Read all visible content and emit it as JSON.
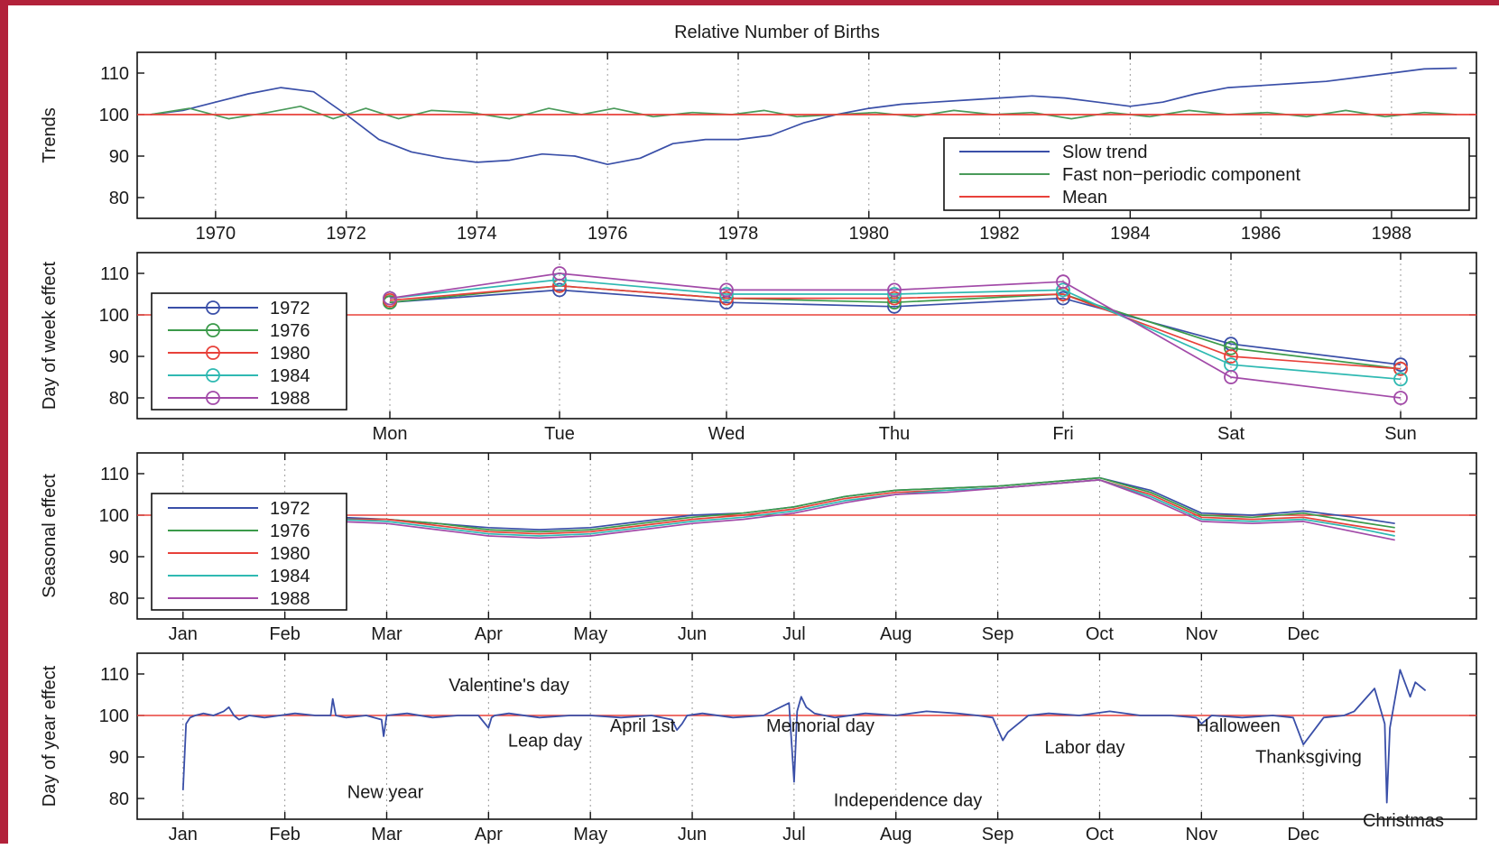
{
  "figure_title": "Relative Number of Births",
  "colors": {
    "mean": "#e8413a",
    "slow": "#3a4fa8",
    "fast": "#4a9a5a",
    "border": "#b2213a",
    "years": [
      "#3a4fa8",
      "#3b9a4a",
      "#e8413a",
      "#2fb9b2",
      "#a24aa8"
    ]
  },
  "chart_data": [
    {
      "type": "line",
      "panel": "trends",
      "title": "Relative Number of Births",
      "ylabel": "Trends",
      "xlabel": "",
      "xlim": [
        1968.8,
        1989.3
      ],
      "ylim": [
        75,
        115
      ],
      "yticks": [
        80,
        90,
        100,
        110
      ],
      "xticks": [
        1970,
        1972,
        1974,
        1976,
        1978,
        1980,
        1982,
        1984,
        1986,
        1988
      ],
      "xtick_labels": [
        "1970",
        "1972",
        "1974",
        "1976",
        "1978",
        "1980",
        "1982",
        "1984",
        "1986",
        "1988"
      ],
      "grid": "vertical dotted",
      "legend": {
        "placement": "bottom-right",
        "entries": [
          "Slow trend",
          "Fast non−periodic component",
          "Mean"
        ]
      },
      "series": [
        {
          "name": "Slow trend",
          "x": [
            1969,
            1969.5,
            1970,
            1970.5,
            1971,
            1971.5,
            1972,
            1972.5,
            1973,
            1973.5,
            1974,
            1974.5,
            1975,
            1975.5,
            1976,
            1976.5,
            1977,
            1977.5,
            1978,
            1978.5,
            1979,
            1979.5,
            1980,
            1980.5,
            1981,
            1981.5,
            1982,
            1982.5,
            1983,
            1983.5,
            1984,
            1984.5,
            1985,
            1985.5,
            1986,
            1986.5,
            1987,
            1987.5,
            1988,
            1988.5,
            1989
          ],
          "values": [
            100,
            101,
            103,
            105,
            106.5,
            105.5,
            100,
            94,
            91,
            89.5,
            88.5,
            89,
            90.5,
            90,
            88,
            89.5,
            93,
            94,
            94,
            95,
            98,
            100,
            101.5,
            102.5,
            103,
            103.5,
            104,
            104.5,
            104,
            103,
            102,
            103,
            105,
            106.5,
            107,
            107.5,
            108,
            109,
            110,
            111,
            111.2
          ]
        },
        {
          "name": "Fast non−periodic component",
          "x": [
            1969,
            1969.6,
            1970.2,
            1970.8,
            1971.3,
            1971.8,
            1972.3,
            1972.8,
            1973.3,
            1973.9,
            1974.5,
            1975.1,
            1975.6,
            1976.1,
            1976.7,
            1977.3,
            1977.9,
            1978.4,
            1978.9,
            1979.5,
            1980.1,
            1980.7,
            1981.3,
            1981.9,
            1982.5,
            1983.1,
            1983.7,
            1984.3,
            1984.9,
            1985.5,
            1986.1,
            1986.7,
            1987.3,
            1987.9,
            1988.5,
            1989
          ],
          "values": [
            100,
            101.5,
            99,
            100.5,
            102,
            99,
            101.5,
            99,
            101,
            100.5,
            99,
            101.5,
            100,
            101.5,
            99.5,
            100.5,
            100,
            101,
            99.5,
            100,
            100.5,
            99.5,
            101,
            100,
            100.5,
            99,
            100.5,
            99.5,
            101,
            100,
            100.5,
            99.5,
            101,
            99.5,
            100.5,
            100
          ]
        },
        {
          "name": "Mean",
          "x": [
            1968.8,
            1989.3
          ],
          "values": [
            100,
            100
          ]
        }
      ]
    },
    {
      "type": "line",
      "panel": "day-of-week",
      "ylabel": "Day of week effect",
      "xlabel": "",
      "categories": [
        "Mon",
        "Tue",
        "Wed",
        "Thu",
        "Fri",
        "Sat",
        "Sun"
      ],
      "ylim": [
        75,
        115
      ],
      "yticks": [
        80,
        90,
        100,
        110
      ],
      "grid": "vertical dotted",
      "legend": {
        "placement": "left",
        "entries": [
          "1972",
          "1976",
          "1980",
          "1984",
          "1988"
        ]
      },
      "series": [
        {
          "name": "1972",
          "values": [
            103,
            106,
            103,
            102,
            104,
            93,
            88
          ]
        },
        {
          "name": "1976",
          "values": [
            103,
            107,
            104,
            103,
            105,
            92,
            87
          ]
        },
        {
          "name": "1980",
          "values": [
            103.5,
            107,
            104,
            104,
            105,
            90,
            87
          ]
        },
        {
          "name": "1984",
          "values": [
            104,
            108.5,
            105,
            105,
            106,
            88,
            84.5
          ]
        },
        {
          "name": "1988",
          "values": [
            104,
            110,
            106,
            106,
            108,
            85,
            80
          ]
        }
      ]
    },
    {
      "type": "line",
      "panel": "seasonal",
      "ylabel": "Seasonal effect",
      "xlabel": "",
      "xlim": [
        -0.45,
        12.7
      ],
      "x_month_ticks": [
        "Jan",
        "Feb",
        "Mar",
        "Apr",
        "May",
        "Jun",
        "Jul",
        "Aug",
        "Sep",
        "Oct",
        "Nov",
        "Dec"
      ],
      "ylim": [
        75,
        115
      ],
      "yticks": [
        80,
        90,
        100,
        110
      ],
      "grid": "vertical dotted",
      "legend": {
        "placement": "left",
        "entries": [
          "1972",
          "1976",
          "1980",
          "1984",
          "1988"
        ]
      },
      "x": [
        0,
        0.5,
        1,
        1.5,
        2,
        2.5,
        3,
        3.5,
        4,
        4.5,
        5,
        5.5,
        6,
        6.5,
        7,
        7.5,
        8,
        8.5,
        9,
        9.5,
        10,
        10.5,
        11,
        11.5,
        11.9
      ],
      "series": [
        {
          "name": "1972",
          "values": [
            98,
            98,
            98.5,
            99.5,
            99,
            98,
            97,
            96.5,
            97,
            98.5,
            100,
            100.5,
            102,
            104.5,
            106,
            106.5,
            107,
            108,
            109,
            106,
            100.5,
            100,
            101,
            99.5,
            98
          ]
        },
        {
          "name": "1976",
          "values": [
            97,
            97.5,
            98.5,
            99,
            99,
            98,
            96.5,
            96,
            96.5,
            98,
            99.5,
            100.5,
            102,
            104.5,
            106,
            106.5,
            107,
            108,
            109,
            105.5,
            100,
            99.5,
            100.5,
            98.5,
            97
          ]
        },
        {
          "name": "1980",
          "values": [
            96.5,
            97,
            98,
            99,
            99,
            97.5,
            96,
            95.5,
            96,
            97.5,
            99,
            100,
            101.5,
            104,
            105.5,
            106,
            106.5,
            107.5,
            108.5,
            105,
            99.5,
            99,
            99.5,
            97.5,
            96
          ]
        },
        {
          "name": "1984",
          "values": [
            96,
            96.5,
            98,
            99,
            98.5,
            97,
            95.5,
            95,
            95.5,
            97,
            98.5,
            99.5,
            101,
            103.5,
            105,
            106,
            106.5,
            107.5,
            108.5,
            104.5,
            99,
            98.5,
            99,
            97,
            95
          ]
        },
        {
          "name": "1988",
          "values": [
            95,
            96,
            97.5,
            98.5,
            98,
            96.5,
            95,
            94.5,
            95,
            96.5,
            98,
            99,
            100.5,
            103,
            105,
            105.5,
            106.5,
            107.5,
            108.5,
            104,
            98.5,
            98,
            98.5,
            96,
            94
          ]
        }
      ]
    },
    {
      "type": "line",
      "panel": "day-of-year",
      "ylabel": "Day of year effect",
      "xlabel": "",
      "xlim": [
        -0.45,
        12.7
      ],
      "x_month_ticks": [
        "Jan",
        "Feb",
        "Mar",
        "Apr",
        "May",
        "Jun",
        "Jul",
        "Aug",
        "Sep",
        "Oct",
        "Nov",
        "Dec"
      ],
      "ylim": [
        75,
        115
      ],
      "yticks": [
        80,
        90,
        100,
        110
      ],
      "grid": "vertical dotted",
      "x": [
        0,
        0.03,
        0.07,
        0.12,
        0.2,
        0.3,
        0.4,
        0.45,
        0.5,
        0.55,
        0.65,
        0.8,
        0.95,
        1.1,
        1.3,
        1.45,
        1.47,
        1.5,
        1.6,
        1.8,
        1.95,
        1.97,
        2.0,
        2.2,
        2.45,
        2.7,
        2.9,
        3.0,
        3.03,
        3.06,
        3.2,
        3.5,
        3.8,
        4.0,
        4.3,
        4.6,
        4.8,
        4.85,
        4.9,
        4.95,
        5.1,
        5.4,
        5.7,
        5.95,
        6.0,
        6.03,
        6.07,
        6.12,
        6.2,
        6.4,
        6.7,
        7.0,
        7.3,
        7.6,
        7.8,
        7.95,
        8.05,
        8.1,
        8.2,
        8.3,
        8.5,
        8.8,
        9.1,
        9.4,
        9.7,
        9.95,
        10.0,
        10.1,
        10.4,
        10.7,
        10.9,
        11.0,
        11.2,
        11.4,
        11.5,
        11.7,
        11.8,
        11.82,
        11.85,
        11.95,
        12.05,
        12.1,
        12.2
      ],
      "values": [
        82,
        98,
        99.5,
        100,
        100.5,
        100,
        101,
        102,
        100,
        99,
        100,
        99.5,
        100,
        100.5,
        100,
        100,
        104,
        100,
        99.5,
        100,
        99,
        95,
        100,
        100.5,
        99.5,
        100,
        100,
        97,
        99.5,
        100,
        100.5,
        99.5,
        100,
        100,
        99.5,
        100,
        99,
        96.5,
        98,
        100,
        100.5,
        99.5,
        100,
        103,
        84,
        101,
        104.5,
        102,
        100.5,
        99.5,
        100.5,
        100,
        101,
        100.5,
        100,
        99.5,
        94,
        96,
        98,
        100,
        100.5,
        100,
        101,
        100,
        100,
        99.5,
        98,
        100,
        99.5,
        100,
        99.5,
        93,
        99.5,
        100,
        101,
        106.5,
        98,
        79,
        97,
        111,
        104.5,
        108,
        106
      ],
      "annotations": [
        "New year",
        "Valentine's day",
        "Leap day",
        "April 1st",
        "Memorial day",
        "Independence day",
        "Labor day",
        "Halloween",
        "Thanksgiving",
        "Christmas"
      ]
    }
  ]
}
